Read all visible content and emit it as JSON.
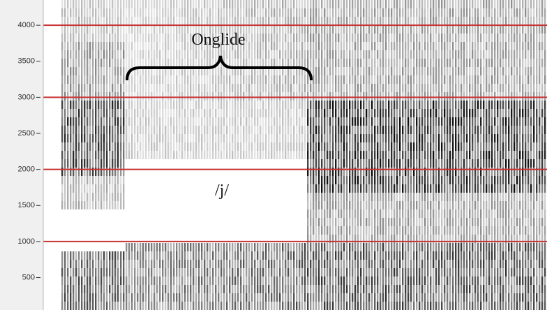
{
  "chart_data": {
    "type": "spectrogram",
    "ylim": [
      50,
      4350
    ],
    "yticks": [
      500,
      1000,
      1500,
      2000,
      2500,
      3000,
      3500,
      4000
    ],
    "reference_lines": [
      1000,
      2000,
      3000,
      4000
    ],
    "reference_line_color": "#c83232",
    "annotations": [
      {
        "text": "Onglide"
      },
      {
        "text": "/j/"
      }
    ]
  }
}
